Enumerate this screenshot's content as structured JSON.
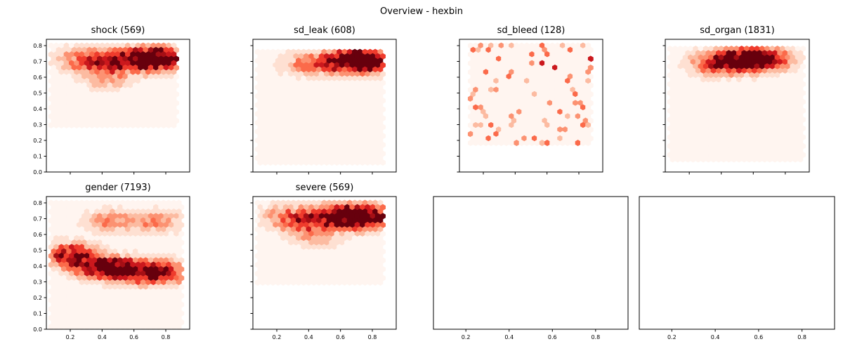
{
  "figure": {
    "title": "Overview - hexbin"
  },
  "chart_data": [
    {
      "type": "heatmap",
      "title": "shock (569)",
      "count": 569,
      "colormap": "Reds",
      "xlim": [
        0.05,
        0.95
      ],
      "ylim": [
        0.0,
        0.84
      ],
      "x_ticks": [
        "0.2",
        "0.4",
        "0.6",
        "0.8"
      ],
      "y_ticks": [
        "0.0",
        "0.1",
        "0.2",
        "0.3",
        "0.4",
        "0.5",
        "0.6",
        "0.7",
        "0.8"
      ],
      "show_xtick_labels": false,
      "show_ytick_labels": true,
      "hexbin_extent": {
        "x": [
          0.08,
          0.88
        ],
        "y": [
          0.27,
          0.8
        ]
      },
      "density_hotspots": [
        {
          "x": 0.78,
          "y": 0.72,
          "intensity": 1.0
        },
        {
          "x": 0.7,
          "y": 0.7,
          "intensity": 0.75
        },
        {
          "x": 0.6,
          "y": 0.72,
          "intensity": 0.6
        },
        {
          "x": 0.48,
          "y": 0.7,
          "intensity": 0.55
        },
        {
          "x": 0.35,
          "y": 0.68,
          "intensity": 0.45
        },
        {
          "x": 0.25,
          "y": 0.72,
          "intensity": 0.35
        },
        {
          "x": 0.45,
          "y": 0.58,
          "intensity": 0.3
        }
      ]
    },
    {
      "type": "heatmap",
      "title": "sd_leak (608)",
      "count": 608,
      "colormap": "Reds",
      "xlim": [
        0.05,
        0.95
      ],
      "ylim": [
        0.0,
        0.84
      ],
      "x_ticks": [
        "0.2",
        "0.4",
        "0.6",
        "0.8"
      ],
      "y_ticks": [
        "0.0",
        "0.1",
        "0.2",
        "0.3",
        "0.4",
        "0.5",
        "0.6",
        "0.7",
        "0.8"
      ],
      "show_xtick_labels": false,
      "show_ytick_labels": false,
      "hexbin_extent": {
        "x": [
          0.08,
          0.88
        ],
        "y": [
          0.06,
          0.76
        ]
      },
      "density_hotspots": [
        {
          "x": 0.77,
          "y": 0.7,
          "intensity": 1.0
        },
        {
          "x": 0.72,
          "y": 0.71,
          "intensity": 0.8
        },
        {
          "x": 0.62,
          "y": 0.7,
          "intensity": 0.55
        },
        {
          "x": 0.5,
          "y": 0.68,
          "intensity": 0.4
        },
        {
          "x": 0.35,
          "y": 0.69,
          "intensity": 0.3
        }
      ]
    },
    {
      "type": "heatmap",
      "title": "sd_bleed (128)",
      "count": 128,
      "colormap": "Reds",
      "xlim": [
        0.05,
        0.95
      ],
      "ylim": [
        0.0,
        0.84
      ],
      "x_ticks": [
        "0.2",
        "0.4",
        "0.6",
        "0.8"
      ],
      "y_ticks": [
        "0.0",
        "0.1",
        "0.2",
        "0.3",
        "0.4",
        "0.5",
        "0.6",
        "0.7",
        "0.8"
      ],
      "show_xtick_labels": false,
      "show_ytick_labels": false,
      "hexbin_extent": {
        "x": [
          0.12,
          0.88
        ],
        "y": [
          0.17,
          0.8
        ]
      },
      "density_hotspots": [
        {
          "x": 0.78,
          "y": 0.72,
          "intensity": 0.9
        },
        {
          "x": 0.22,
          "y": 0.7,
          "intensity": 0.85
        },
        {
          "x": 0.65,
          "y": 0.67,
          "intensity": 0.6
        },
        {
          "x": 0.45,
          "y": 0.6,
          "intensity": 0.5
        },
        {
          "x": 0.3,
          "y": 0.5,
          "intensity": 0.4
        }
      ]
    },
    {
      "type": "heatmap",
      "title": "sd_organ (1831)",
      "count": 1831,
      "colormap": "Reds",
      "xlim": [
        0.05,
        0.95
      ],
      "ylim": [
        0.0,
        0.84
      ],
      "x_ticks": [
        "0.2",
        "0.4",
        "0.6",
        "0.8"
      ],
      "y_ticks": [
        "0.0",
        "0.1",
        "0.2",
        "0.3",
        "0.4",
        "0.5",
        "0.6",
        "0.7",
        "0.8"
      ],
      "show_xtick_labels": false,
      "show_ytick_labels": false,
      "hexbin_extent": {
        "x": [
          0.08,
          0.92
        ],
        "y": [
          0.06,
          0.78
        ]
      },
      "density_hotspots": [
        {
          "x": 0.68,
          "y": 0.71,
          "intensity": 1.0
        },
        {
          "x": 0.55,
          "y": 0.71,
          "intensity": 0.85
        },
        {
          "x": 0.45,
          "y": 0.7,
          "intensity": 0.65
        },
        {
          "x": 0.35,
          "y": 0.68,
          "intensity": 0.45
        }
      ]
    },
    {
      "type": "heatmap",
      "title": "gender (7193)",
      "count": 7193,
      "colormap": "Reds",
      "xlim": [
        0.05,
        0.95
      ],
      "ylim": [
        0.0,
        0.84
      ],
      "x_ticks": [
        "0.2",
        "0.4",
        "0.6",
        "0.8"
      ],
      "y_ticks": [
        "0.0",
        "0.1",
        "0.2",
        "0.3",
        "0.4",
        "0.5",
        "0.6",
        "0.7",
        "0.8"
      ],
      "show_xtick_labels": true,
      "show_ytick_labels": true,
      "hexbin_extent": {
        "x": [
          0.08,
          0.9
        ],
        "y": [
          0.0,
          0.8
        ]
      },
      "density_hotspots": [
        {
          "x": 0.2,
          "y": 0.47,
          "intensity": 1.0
        },
        {
          "x": 0.35,
          "y": 0.4,
          "intensity": 0.9
        },
        {
          "x": 0.5,
          "y": 0.38,
          "intensity": 0.85
        },
        {
          "x": 0.65,
          "y": 0.36,
          "intensity": 0.8
        },
        {
          "x": 0.8,
          "y": 0.36,
          "intensity": 0.8
        },
        {
          "x": 0.45,
          "y": 0.68,
          "intensity": 0.45
        },
        {
          "x": 0.75,
          "y": 0.68,
          "intensity": 0.45
        }
      ]
    },
    {
      "type": "heatmap",
      "title": "severe (569)",
      "count": 569,
      "colormap": "Reds",
      "xlim": [
        0.05,
        0.95
      ],
      "ylim": [
        0.0,
        0.84
      ],
      "x_ticks": [
        "0.2",
        "0.4",
        "0.6",
        "0.8"
      ],
      "y_ticks": [
        "0.0",
        "0.1",
        "0.2",
        "0.3",
        "0.4",
        "0.5",
        "0.6",
        "0.7",
        "0.8"
      ],
      "show_xtick_labels": true,
      "show_ytick_labels": false,
      "hexbin_extent": {
        "x": [
          0.08,
          0.88
        ],
        "y": [
          0.27,
          0.8
        ]
      },
      "density_hotspots": [
        {
          "x": 0.78,
          "y": 0.72,
          "intensity": 1.0
        },
        {
          "x": 0.7,
          "y": 0.7,
          "intensity": 0.75
        },
        {
          "x": 0.6,
          "y": 0.72,
          "intensity": 0.6
        },
        {
          "x": 0.48,
          "y": 0.7,
          "intensity": 0.55
        },
        {
          "x": 0.35,
          "y": 0.68,
          "intensity": 0.45
        },
        {
          "x": 0.25,
          "y": 0.72,
          "intensity": 0.35
        },
        {
          "x": 0.45,
          "y": 0.58,
          "intensity": 0.3
        }
      ]
    },
    {
      "type": "heatmap",
      "title": "",
      "empty": true,
      "xlim": [
        0.05,
        0.95
      ],
      "x_ticks": [
        "0.2",
        "0.4",
        "0.6",
        "0.8"
      ],
      "show_xtick_labels": true,
      "show_ytick_labels": false
    },
    {
      "type": "heatmap",
      "title": "",
      "empty": true,
      "xlim": [
        0.05,
        0.95
      ],
      "x_ticks": [
        "0.2",
        "0.4",
        "0.6",
        "0.8"
      ],
      "show_xtick_labels": true,
      "show_ytick_labels": false
    }
  ]
}
